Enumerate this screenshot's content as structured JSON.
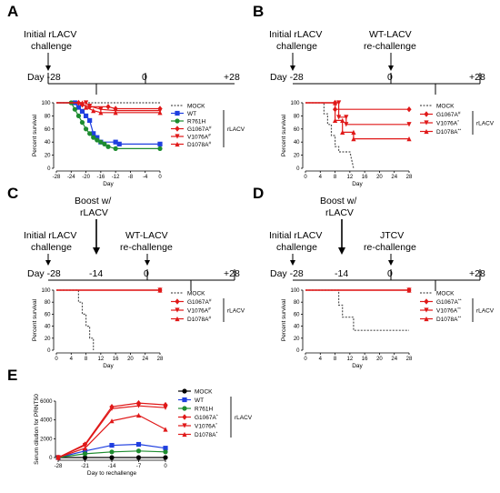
{
  "panels": {
    "A": {
      "letter": "A",
      "timeline": {
        "label1": "Initial rLACV",
        "label2": "challenge",
        "day_start": "Day -28",
        "mid": "0",
        "end": "+28"
      },
      "chart_data": {
        "type": "line",
        "xlabel": "Day",
        "ylabel": "Percent survival",
        "xlim": [
          -28,
          0
        ],
        "ylim": [
          0,
          100
        ],
        "xticks": [
          -28,
          -24,
          -20,
          -16,
          -12,
          -8,
          -4,
          0
        ],
        "yticks": [
          0,
          20,
          40,
          60,
          80,
          100
        ],
        "bracket_label": "rLACV",
        "series": [
          {
            "name": "MOCK",
            "sup": "",
            "color": "#555555",
            "dash": "2,1.5",
            "marker": "none",
            "points": [
              [
                -28,
                100
              ],
              [
                0,
                100
              ]
            ]
          },
          {
            "name": "WT",
            "sup": "",
            "color": "#1f3fe0",
            "dash": "",
            "marker": "square",
            "points": [
              [
                -28,
                100
              ],
              [
                -23,
                100
              ],
              [
                -22,
                93
              ],
              [
                -21,
                87
              ],
              [
                -20,
                80
              ],
              [
                -19,
                73
              ],
              [
                -18,
                53
              ],
              [
                -17,
                47
              ],
              [
                -16,
                40
              ],
              [
                -12,
                40
              ],
              [
                -11,
                37
              ],
              [
                0,
                37
              ]
            ]
          },
          {
            "name": "R761H",
            "sup": "",
            "color": "#1d8c2f",
            "dash": "",
            "marker": "circle",
            "points": [
              [
                -28,
                100
              ],
              [
                -24,
                100
              ],
              [
                -23,
                90
              ],
              [
                -22,
                80
              ],
              [
                -21,
                70
              ],
              [
                -20,
                60
              ],
              [
                -19,
                53
              ],
              [
                -18,
                47
              ],
              [
                -17,
                43
              ],
              [
                -16,
                40
              ],
              [
                -15,
                37
              ],
              [
                -14,
                33
              ],
              [
                -12,
                30
              ],
              [
                0,
                30
              ]
            ]
          },
          {
            "name": "G1067A",
            "sup": "#",
            "color": "#e01818",
            "dash": "",
            "marker": "diamond",
            "points": [
              [
                -28,
                100
              ],
              [
                -22,
                100
              ],
              [
                -21,
                97
              ],
              [
                -19,
                94
              ],
              [
                -14,
                94
              ],
              [
                -12,
                91
              ],
              [
                0,
                91
              ]
            ]
          },
          {
            "name": "V1076A",
            "sup": "#",
            "color": "#e01818",
            "dash": "",
            "marker": "triangle-down",
            "points": [
              [
                -28,
                100
              ],
              [
                -20,
                100
              ],
              [
                -19,
                95
              ],
              [
                -16,
                90
              ],
              [
                -12,
                88
              ],
              [
                0,
                88
              ]
            ]
          },
          {
            "name": "D1078A",
            "sup": "#",
            "color": "#e01818",
            "dash": "",
            "marker": "triangle-up",
            "points": [
              [
                -28,
                100
              ],
              [
                -21,
                100
              ],
              [
                -20,
                93
              ],
              [
                -18,
                88
              ],
              [
                -16,
                85
              ],
              [
                -12,
                85
              ],
              [
                0,
                85
              ]
            ]
          }
        ]
      }
    },
    "B": {
      "letter": "B",
      "timeline": {
        "label1": "Initial rLACV",
        "label2": "challenge",
        "top1": "WT-LACV",
        "top2": "re-challenge",
        "day_start": "Day -28",
        "mid": "0",
        "end": "+28"
      },
      "chart_data": {
        "type": "line",
        "xlabel": "Day",
        "ylabel": "Percent survival",
        "xlim": [
          0,
          28
        ],
        "ylim": [
          0,
          100
        ],
        "xticks": [
          0,
          4,
          8,
          12,
          16,
          20,
          24,
          28
        ],
        "yticks": [
          0,
          20,
          40,
          60,
          80,
          100
        ],
        "bracket_label": "rLACV",
        "series": [
          {
            "name": "MOCK",
            "sup": "",
            "color": "#555555",
            "dash": "2,1.5",
            "marker": "none",
            "points": [
              [
                0,
                100
              ],
              [
                5,
                100
              ],
              [
                5,
                83
              ],
              [
                6,
                83
              ],
              [
                6,
                67
              ],
              [
                7,
                67
              ],
              [
                7,
                50
              ],
              [
                8,
                50
              ],
              [
                8,
                33
              ],
              [
                9,
                33
              ],
              [
                9,
                25
              ],
              [
                12,
                25
              ],
              [
                13,
                0
              ]
            ]
          },
          {
            "name": "G1067A",
            "sup": "#",
            "color": "#e01818",
            "dash": "",
            "marker": "diamond",
            "points": [
              [
                0,
                100
              ],
              [
                8,
                100
              ],
              [
                8,
                90
              ],
              [
                28,
                90
              ]
            ]
          },
          {
            "name": "V1076A",
            "sup": "*",
            "color": "#e01818",
            "dash": "",
            "marker": "triangle-down",
            "points": [
              [
                0,
                100
              ],
              [
                9,
                100
              ],
              [
                9,
                78
              ],
              [
                11,
                78
              ],
              [
                11,
                67
              ],
              [
                28,
                67
              ]
            ]
          },
          {
            "name": "D1078A",
            "sup": "**",
            "color": "#e01818",
            "dash": "",
            "marker": "triangle-up",
            "points": [
              [
                0,
                100
              ],
              [
                8,
                100
              ],
              [
                8,
                73
              ],
              [
                10,
                73
              ],
              [
                10,
                55
              ],
              [
                13,
                55
              ],
              [
                13,
                45
              ],
              [
                28,
                45
              ]
            ]
          }
        ]
      }
    },
    "C": {
      "letter": "C",
      "timeline": {
        "label1": "Initial rLACV",
        "label2": "challenge",
        "top1": "Boost w/",
        "top2": "rLACV",
        "mid_label1": "WT-LACV",
        "mid_label2": "re-challenge",
        "day_start": "Day -28",
        "boost_day": "-14",
        "mid": "0",
        "end": "+28"
      },
      "chart_data": {
        "type": "line",
        "xlabel": "Day",
        "ylabel": "Percent survival",
        "xlim": [
          0,
          28
        ],
        "ylim": [
          0,
          100
        ],
        "xticks": [
          0,
          4,
          8,
          12,
          16,
          20,
          24,
          28
        ],
        "yticks": [
          0,
          20,
          40,
          60,
          80,
          100
        ],
        "bracket_label": "rLACV",
        "series": [
          {
            "name": "MOCK",
            "sup": "",
            "color": "#555555",
            "dash": "2,1.5",
            "marker": "none",
            "points": [
              [
                0,
                100
              ],
              [
                6,
                100
              ],
              [
                6,
                80
              ],
              [
                7,
                80
              ],
              [
                7,
                60
              ],
              [
                8,
                60
              ],
              [
                8,
                40
              ],
              [
                9,
                40
              ],
              [
                9,
                20
              ],
              [
                10,
                20
              ],
              [
                10,
                0
              ]
            ]
          },
          {
            "name": "G1067A",
            "sup": "#",
            "color": "#e01818",
            "dash": "",
            "marker": "diamond",
            "points": [
              [
                0,
                100
              ],
              [
                28,
                100
              ]
            ]
          },
          {
            "name": "V1076A",
            "sup": "#",
            "color": "#e01818",
            "dash": "",
            "marker": "triangle-down",
            "points": [
              [
                0,
                100
              ],
              [
                28,
                100
              ]
            ]
          },
          {
            "name": "D1078A",
            "sup": "#",
            "color": "#e01818",
            "dash": "",
            "marker": "triangle-up",
            "points": [
              [
                0,
                100
              ],
              [
                28,
                100
              ]
            ]
          }
        ]
      }
    },
    "D": {
      "letter": "D",
      "timeline": {
        "label1": "Initial rLACV",
        "label2": "challenge",
        "top1": "Boost w/",
        "top2": "rLACV",
        "mid_label1": "JTCV",
        "mid_label2": "re-challenge",
        "day_start": "Day -28",
        "boost_day": "-14",
        "mid": "0",
        "end": "+28"
      },
      "chart_data": {
        "type": "line",
        "xlabel": "Day",
        "ylabel": "Percent survival",
        "xlim": [
          0,
          28
        ],
        "ylim": [
          0,
          100
        ],
        "xticks": [
          0,
          4,
          8,
          12,
          16,
          20,
          24,
          28
        ],
        "yticks": [
          0,
          20,
          40,
          60,
          80,
          100
        ],
        "bracket_label": "rLACV",
        "series": [
          {
            "name": "MOCK",
            "sup": "",
            "color": "#555555",
            "dash": "2,1.5",
            "marker": "none",
            "points": [
              [
                0,
                100
              ],
              [
                9,
                100
              ],
              [
                9,
                75
              ],
              [
                10,
                75
              ],
              [
                10,
                55
              ],
              [
                13,
                55
              ],
              [
                13,
                33
              ],
              [
                28,
                33
              ]
            ]
          },
          {
            "name": "G1067A",
            "sup": "**",
            "color": "#e01818",
            "dash": "",
            "marker": "diamond",
            "points": [
              [
                0,
                100
              ],
              [
                28,
                100
              ]
            ]
          },
          {
            "name": "V1076A",
            "sup": "**",
            "color": "#e01818",
            "dash": "",
            "marker": "triangle-down",
            "points": [
              [
                0,
                100
              ],
              [
                28,
                100
              ]
            ]
          },
          {
            "name": "D1078A",
            "sup": "**",
            "color": "#e01818",
            "dash": "",
            "marker": "triangle-up",
            "points": [
              [
                0,
                100
              ],
              [
                28,
                100
              ]
            ]
          }
        ]
      }
    },
    "E": {
      "letter": "E",
      "chart_data": {
        "type": "line",
        "xlabel": "Day to rechallenge",
        "ylabel": "Serum dilution for PRNT50",
        "xlim": [
          -28,
          0
        ],
        "ylim": [
          0,
          6000
        ],
        "xticks": [
          -28,
          -21,
          -14,
          -7,
          0
        ],
        "yticks": [
          0,
          2000,
          4000,
          6000
        ],
        "bracket_label": "rLACV",
        "series": [
          {
            "name": "MOCK",
            "sup": "",
            "color": "#000000",
            "dash": "",
            "marker": "circle",
            "points": [
              [
                -28,
                0
              ],
              [
                -21,
                0
              ],
              [
                -14,
                0
              ],
              [
                -7,
                0
              ],
              [
                0,
                0
              ]
            ]
          },
          {
            "name": "WT",
            "sup": "",
            "color": "#1f3fe0",
            "dash": "",
            "marker": "square",
            "points": [
              [
                -28,
                0
              ],
              [
                -21,
                700
              ],
              [
                -14,
                1300
              ],
              [
                -7,
                1400
              ],
              [
                0,
                1000
              ]
            ]
          },
          {
            "name": "R761H",
            "sup": "",
            "color": "#1d8c2f",
            "dash": "",
            "marker": "circle",
            "points": [
              [
                -28,
                0
              ],
              [
                -21,
                400
              ],
              [
                -14,
                600
              ],
              [
                -7,
                700
              ],
              [
                0,
                600
              ]
            ]
          },
          {
            "name": "G1067A",
            "sup": "*",
            "color": "#e01818",
            "dash": "",
            "marker": "diamond",
            "points": [
              [
                -28,
                0
              ],
              [
                -21,
                1400
              ],
              [
                -14,
                5400
              ],
              [
                -7,
                5800
              ],
              [
                0,
                5600
              ]
            ]
          },
          {
            "name": "V1076A",
            "sup": "*",
            "color": "#e01818",
            "dash": "",
            "marker": "triangle-down",
            "points": [
              [
                -28,
                0
              ],
              [
                -21,
                1300
              ],
              [
                -14,
                5200
              ],
              [
                -7,
                5500
              ],
              [
                0,
                5300
              ]
            ]
          },
          {
            "name": "D1078A",
            "sup": "*",
            "color": "#e01818",
            "dash": "",
            "marker": "triangle-up",
            "points": [
              [
                -28,
                0
              ],
              [
                -21,
                1000
              ],
              [
                -14,
                3900
              ],
              [
                -7,
                4500
              ],
              [
                0,
                3000
              ]
            ]
          }
        ]
      }
    }
  }
}
